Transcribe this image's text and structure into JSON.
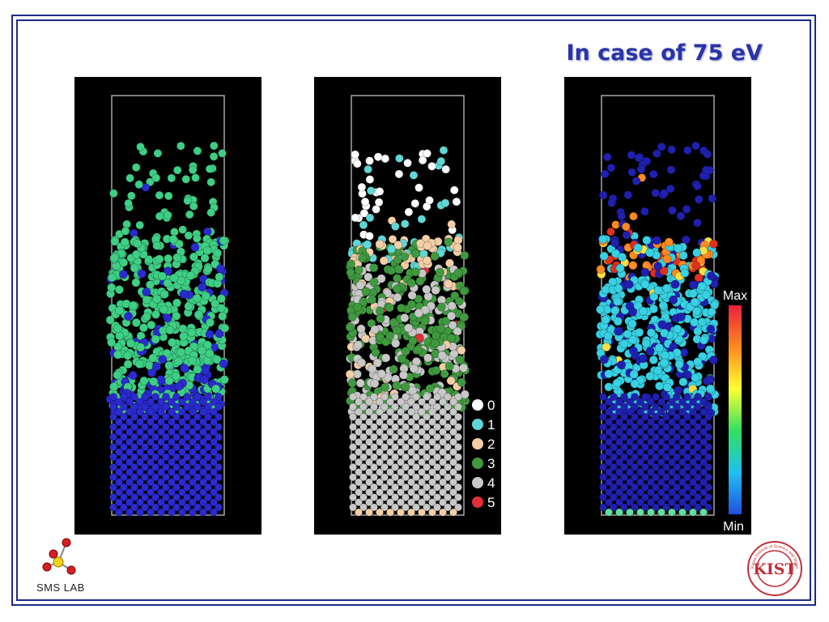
{
  "title": "In case of 75 eV",
  "panels": [
    {
      "name": "panel-1",
      "atom_colors": [
        "#3ecf85",
        "#2a2acf"
      ]
    },
    {
      "name": "panel-2",
      "atom_colors": [
        "#ffffff",
        "#5fd6d6",
        "#f4cfa6",
        "#3f9a3f",
        "#c8c8c8",
        "#e0303a"
      ]
    },
    {
      "name": "panel-3",
      "atom_colors": [
        "#2020b0",
        "#37d1e3",
        "#ff8a20",
        "#e03020",
        "#ffe040"
      ]
    }
  ],
  "legend": {
    "items": [
      {
        "label": "0",
        "color": "#ffffff"
      },
      {
        "label": "1",
        "color": "#5fd6d6"
      },
      {
        "label": "2",
        "color": "#f4cfa6"
      },
      {
        "label": "3",
        "color": "#3f9a3f"
      },
      {
        "label": "4",
        "color": "#c8c8c8"
      },
      {
        "label": "5",
        "color": "#e0303a"
      }
    ]
  },
  "colorbar": {
    "max_label": "Max",
    "min_label": "Min",
    "colors": [
      "#e8203a",
      "#ff8a20",
      "#ffff30",
      "#30e060",
      "#20c0f0",
      "#2050e0"
    ]
  },
  "logos": {
    "left_text": "SMS LAB",
    "right_text": "KIST",
    "right_ring_text": "Korea Institute of Science and Technology"
  }
}
